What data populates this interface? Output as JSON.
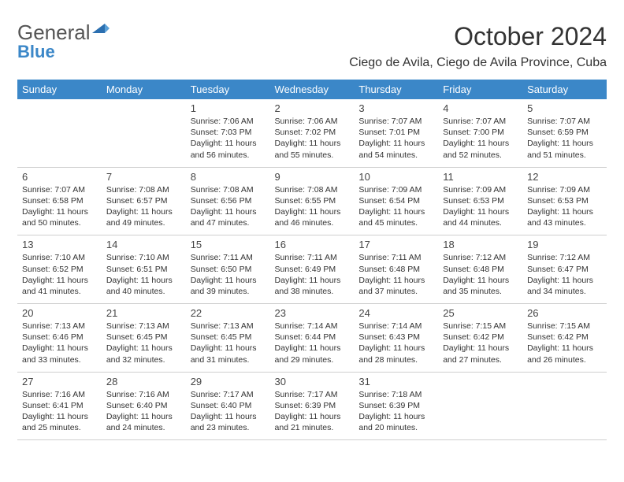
{
  "brand": {
    "text_general": "General",
    "text_blue": "Blue",
    "mark_color": "#2b6fb0"
  },
  "title": {
    "month": "October 2024",
    "location": "Ciego de Avila, Ciego de Avila Province, Cuba"
  },
  "colors": {
    "header_bg": "#3b87c8",
    "header_text": "#ffffff",
    "grid_line": "#cfcfcf",
    "text": "#333333"
  },
  "weekdays": [
    "Sunday",
    "Monday",
    "Tuesday",
    "Wednesday",
    "Thursday",
    "Friday",
    "Saturday"
  ],
  "weeks": [
    [
      null,
      null,
      {
        "n": "1",
        "sr": "7:06 AM",
        "ss": "7:03 PM",
        "dl": "11 hours and 56 minutes."
      },
      {
        "n": "2",
        "sr": "7:06 AM",
        "ss": "7:02 PM",
        "dl": "11 hours and 55 minutes."
      },
      {
        "n": "3",
        "sr": "7:07 AM",
        "ss": "7:01 PM",
        "dl": "11 hours and 54 minutes."
      },
      {
        "n": "4",
        "sr": "7:07 AM",
        "ss": "7:00 PM",
        "dl": "11 hours and 52 minutes."
      },
      {
        "n": "5",
        "sr": "7:07 AM",
        "ss": "6:59 PM",
        "dl": "11 hours and 51 minutes."
      }
    ],
    [
      {
        "n": "6",
        "sr": "7:07 AM",
        "ss": "6:58 PM",
        "dl": "11 hours and 50 minutes."
      },
      {
        "n": "7",
        "sr": "7:08 AM",
        "ss": "6:57 PM",
        "dl": "11 hours and 49 minutes."
      },
      {
        "n": "8",
        "sr": "7:08 AM",
        "ss": "6:56 PM",
        "dl": "11 hours and 47 minutes."
      },
      {
        "n": "9",
        "sr": "7:08 AM",
        "ss": "6:55 PM",
        "dl": "11 hours and 46 minutes."
      },
      {
        "n": "10",
        "sr": "7:09 AM",
        "ss": "6:54 PM",
        "dl": "11 hours and 45 minutes."
      },
      {
        "n": "11",
        "sr": "7:09 AM",
        "ss": "6:53 PM",
        "dl": "11 hours and 44 minutes."
      },
      {
        "n": "12",
        "sr": "7:09 AM",
        "ss": "6:53 PM",
        "dl": "11 hours and 43 minutes."
      }
    ],
    [
      {
        "n": "13",
        "sr": "7:10 AM",
        "ss": "6:52 PM",
        "dl": "11 hours and 41 minutes."
      },
      {
        "n": "14",
        "sr": "7:10 AM",
        "ss": "6:51 PM",
        "dl": "11 hours and 40 minutes."
      },
      {
        "n": "15",
        "sr": "7:11 AM",
        "ss": "6:50 PM",
        "dl": "11 hours and 39 minutes."
      },
      {
        "n": "16",
        "sr": "7:11 AM",
        "ss": "6:49 PM",
        "dl": "11 hours and 38 minutes."
      },
      {
        "n": "17",
        "sr": "7:11 AM",
        "ss": "6:48 PM",
        "dl": "11 hours and 37 minutes."
      },
      {
        "n": "18",
        "sr": "7:12 AM",
        "ss": "6:48 PM",
        "dl": "11 hours and 35 minutes."
      },
      {
        "n": "19",
        "sr": "7:12 AM",
        "ss": "6:47 PM",
        "dl": "11 hours and 34 minutes."
      }
    ],
    [
      {
        "n": "20",
        "sr": "7:13 AM",
        "ss": "6:46 PM",
        "dl": "11 hours and 33 minutes."
      },
      {
        "n": "21",
        "sr": "7:13 AM",
        "ss": "6:45 PM",
        "dl": "11 hours and 32 minutes."
      },
      {
        "n": "22",
        "sr": "7:13 AM",
        "ss": "6:45 PM",
        "dl": "11 hours and 31 minutes."
      },
      {
        "n": "23",
        "sr": "7:14 AM",
        "ss": "6:44 PM",
        "dl": "11 hours and 29 minutes."
      },
      {
        "n": "24",
        "sr": "7:14 AM",
        "ss": "6:43 PM",
        "dl": "11 hours and 28 minutes."
      },
      {
        "n": "25",
        "sr": "7:15 AM",
        "ss": "6:42 PM",
        "dl": "11 hours and 27 minutes."
      },
      {
        "n": "26",
        "sr": "7:15 AM",
        "ss": "6:42 PM",
        "dl": "11 hours and 26 minutes."
      }
    ],
    [
      {
        "n": "27",
        "sr": "7:16 AM",
        "ss": "6:41 PM",
        "dl": "11 hours and 25 minutes."
      },
      {
        "n": "28",
        "sr": "7:16 AM",
        "ss": "6:40 PM",
        "dl": "11 hours and 24 minutes."
      },
      {
        "n": "29",
        "sr": "7:17 AM",
        "ss": "6:40 PM",
        "dl": "11 hours and 23 minutes."
      },
      {
        "n": "30",
        "sr": "7:17 AM",
        "ss": "6:39 PM",
        "dl": "11 hours and 21 minutes."
      },
      {
        "n": "31",
        "sr": "7:18 AM",
        "ss": "6:39 PM",
        "dl": "11 hours and 20 minutes."
      },
      null,
      null
    ]
  ],
  "labels": {
    "sunrise": "Sunrise: ",
    "sunset": "Sunset: ",
    "daylight": "Daylight: "
  }
}
